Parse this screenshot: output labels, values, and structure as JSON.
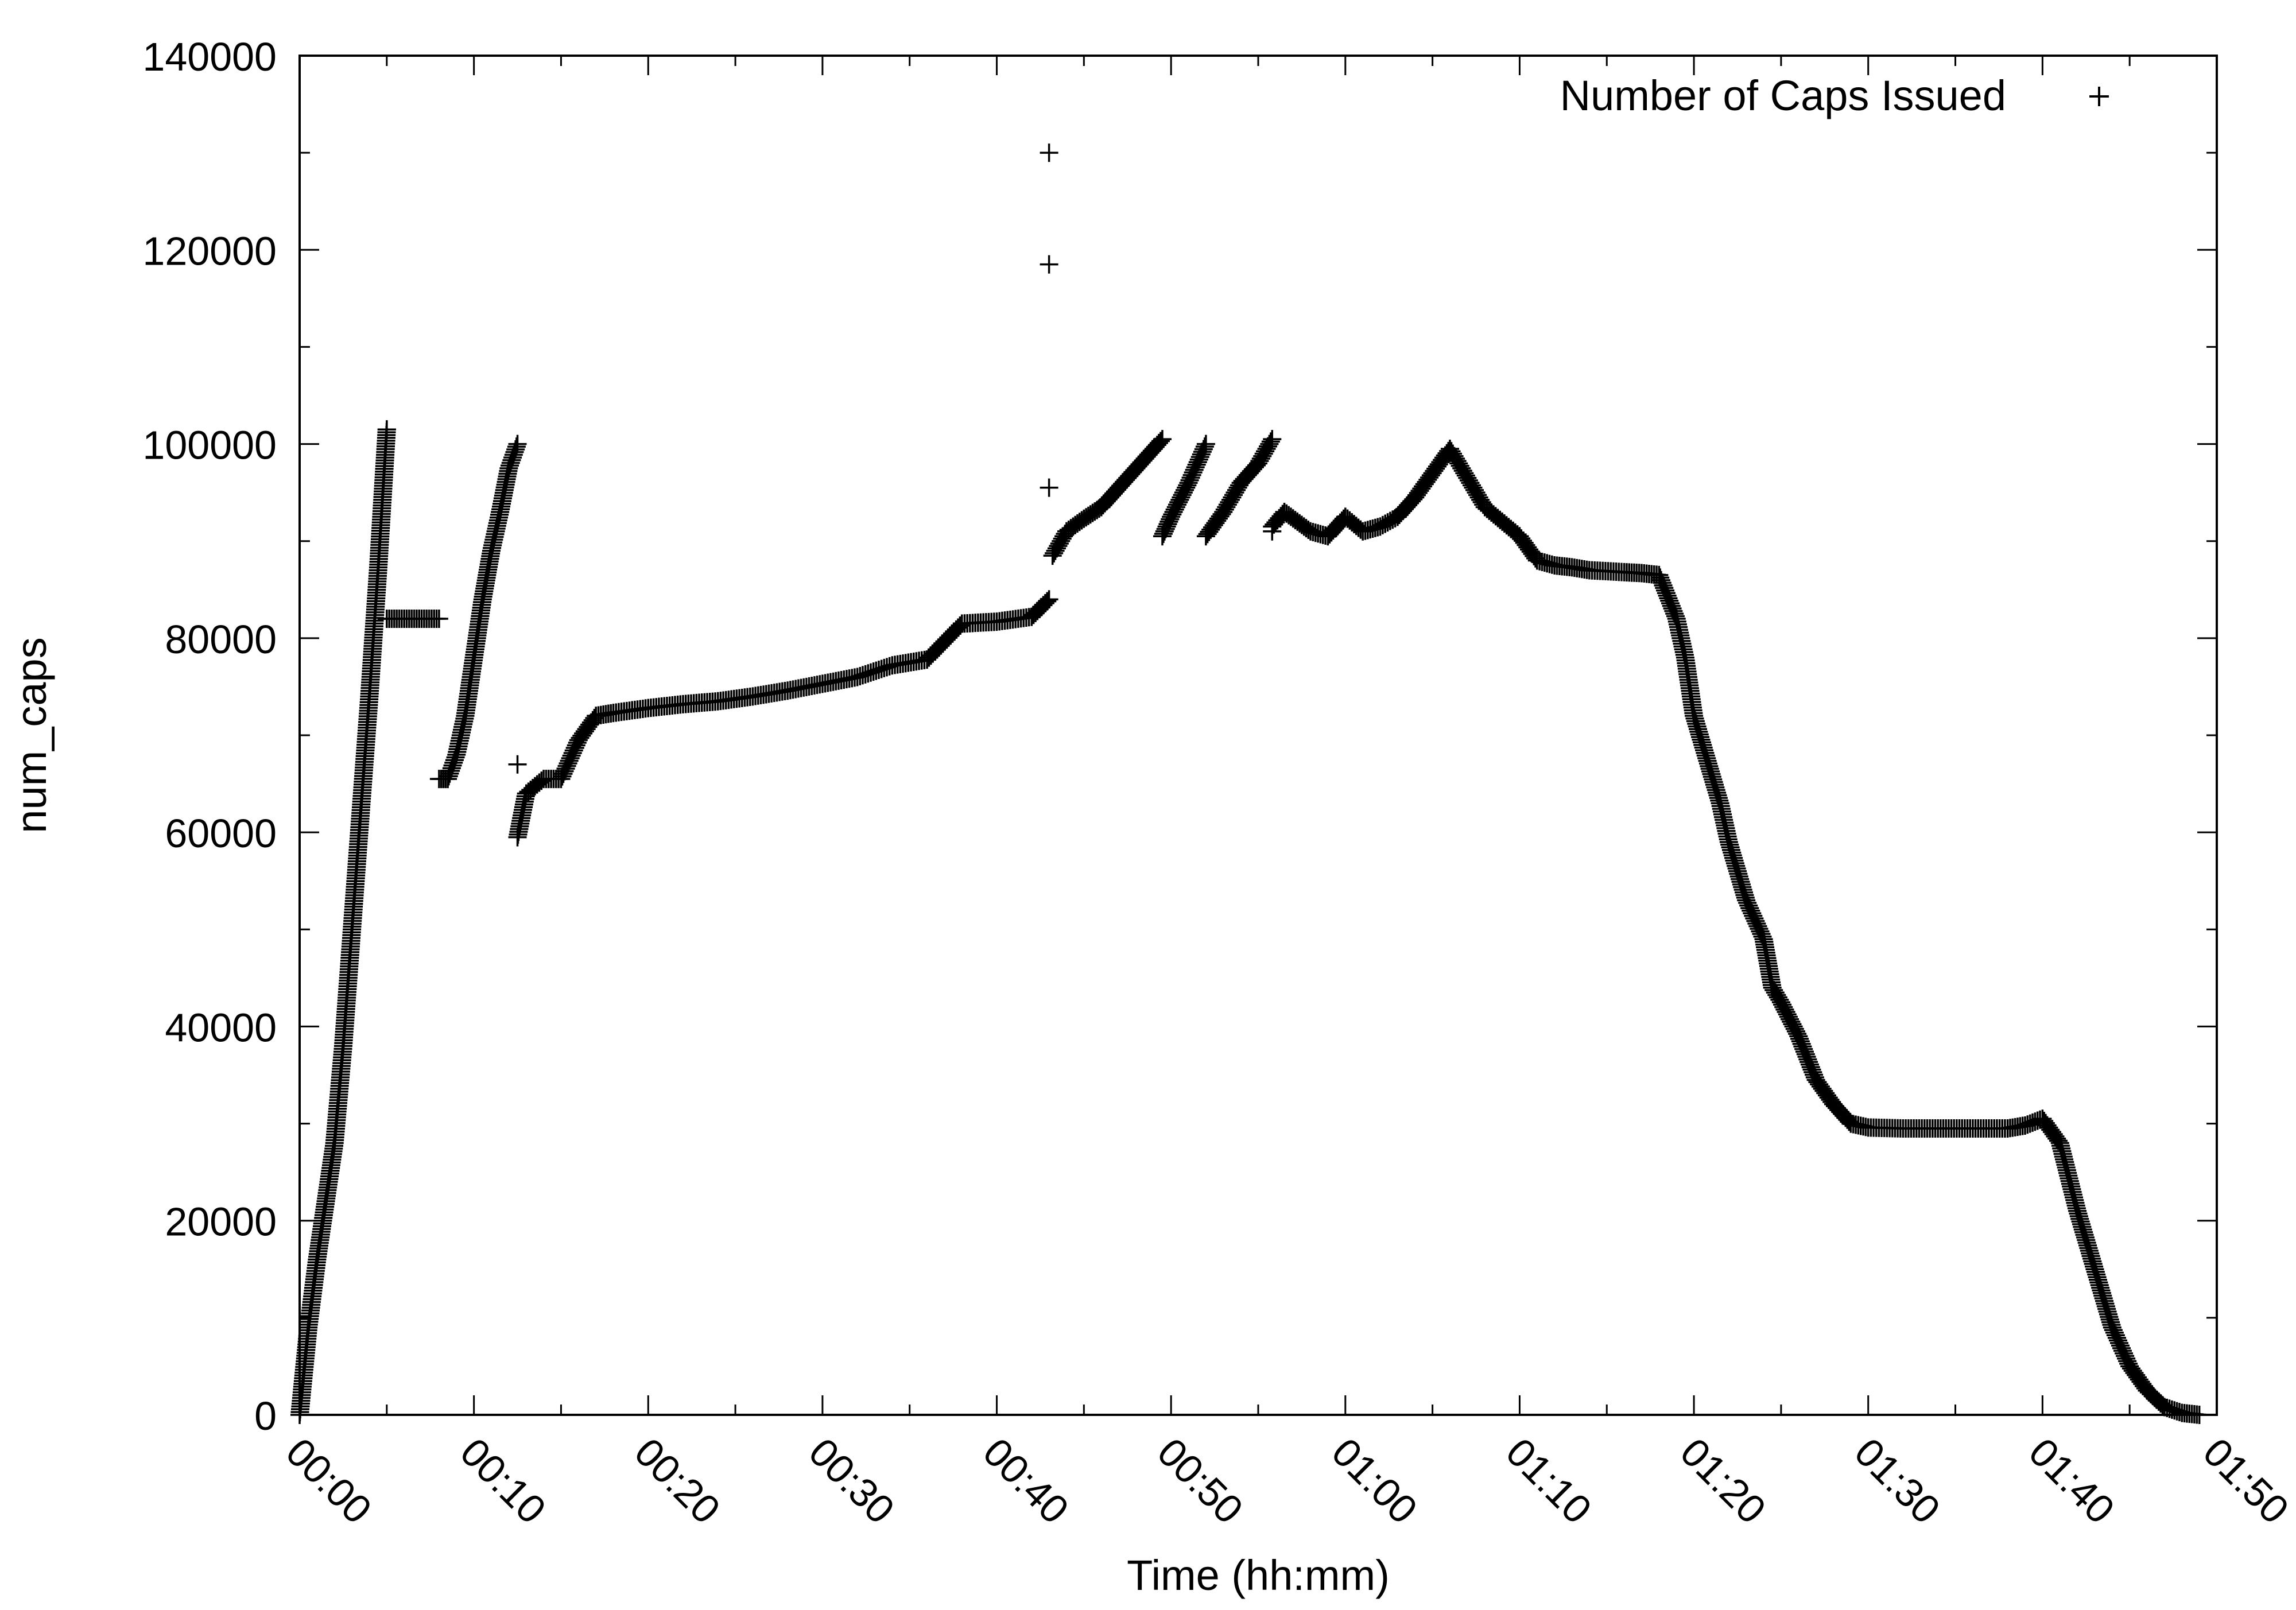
{
  "chart_data": {
    "type": "scatter",
    "title": "",
    "xlabel": "Time (hh:mm)",
    "ylabel": "num_caps",
    "x_unit": "minutes",
    "xlim": [
      0,
      110
    ],
    "ylim": [
      0,
      140000
    ],
    "x_ticks": [
      {
        "value": 0,
        "label": "00:00"
      },
      {
        "value": 10,
        "label": "00:10"
      },
      {
        "value": 20,
        "label": "00:20"
      },
      {
        "value": 30,
        "label": "00:30"
      },
      {
        "value": 40,
        "label": "00:40"
      },
      {
        "value": 50,
        "label": "00:50"
      },
      {
        "value": 60,
        "label": "01:00"
      },
      {
        "value": 70,
        "label": "01:10"
      },
      {
        "value": 80,
        "label": "01:20"
      },
      {
        "value": 90,
        "label": "01:30"
      },
      {
        "value": 100,
        "label": "01:40"
      },
      {
        "value": 110,
        "label": "01:50"
      }
    ],
    "y_ticks": [
      {
        "value": 0,
        "label": "0"
      },
      {
        "value": 20000,
        "label": "20000"
      },
      {
        "value": 40000,
        "label": "40000"
      },
      {
        "value": 60000,
        "label": "60000"
      },
      {
        "value": 80000,
        "label": "80000"
      },
      {
        "value": 100000,
        "label": "100000"
      },
      {
        "value": 120000,
        "label": "120000"
      },
      {
        "value": 140000,
        "label": "140000"
      }
    ],
    "grid": false,
    "legend_position": "top-right",
    "series": [
      {
        "name": "Number of Caps Issued",
        "marker": "plus",
        "color": "#000000",
        "segments": [
          [
            [
              0.0,
              0
            ],
            [
              0.5,
              9000
            ],
            [
              1.0,
              16000
            ],
            [
              1.5,
              22000
            ],
            [
              2.0,
              28000
            ],
            [
              2.5,
              38000
            ],
            [
              3.0,
              50000
            ],
            [
              3.5,
              62000
            ],
            [
              4.0,
              74000
            ],
            [
              4.5,
              87000
            ],
            [
              5.0,
              101500
            ]
          ],
          [
            [
              5.0,
              82000
            ],
            [
              6.0,
              82000
            ],
            [
              7.0,
              82000
            ],
            [
              8.0,
              82000
            ]
          ],
          [
            [
              8.0,
              65500
            ],
            [
              8.5,
              65500
            ],
            [
              9.0,
              68000
            ],
            [
              9.5,
              72000
            ],
            [
              10.0,
              78000
            ],
            [
              10.5,
              84000
            ],
            [
              11.0,
              89000
            ],
            [
              11.5,
              93000
            ],
            [
              12.0,
              97500
            ],
            [
              12.5,
              100000
            ]
          ],
          [
            [
              12.5,
              59500
            ],
            [
              13.0,
              64000
            ],
            [
              14.0,
              65500
            ],
            [
              15.0,
              65500
            ],
            [
              16.0,
              69500
            ],
            [
              17.0,
              72000
            ],
            [
              18.0,
              72300
            ],
            [
              20.0,
              72800
            ],
            [
              22.0,
              73200
            ],
            [
              24.0,
              73500
            ],
            [
              26.0,
              74000
            ],
            [
              28.0,
              74600
            ],
            [
              30.0,
              75300
            ],
            [
              32.0,
              76000
            ],
            [
              34.0,
              77200
            ],
            [
              36.0,
              77800
            ],
            [
              38.0,
              81500
            ],
            [
              40.0,
              81700
            ],
            [
              42.0,
              82200
            ],
            [
              43.0,
              84000
            ]
          ],
          [
            [
              43.2,
              88500
            ],
            [
              44.0,
              91000
            ],
            [
              45.0,
              92300
            ],
            [
              46.0,
              93500
            ],
            [
              47.0,
              95500
            ],
            [
              48.0,
              97500
            ],
            [
              49.0,
              99500
            ],
            [
              49.5,
              100500
            ]
          ],
          [
            [
              49.5,
              90500
            ],
            [
              50.0,
              92500
            ],
            [
              51.0,
              96000
            ],
            [
              52.0,
              100000
            ]
          ],
          [
            [
              52.0,
              90500
            ],
            [
              53.0,
              93000
            ],
            [
              54.0,
              96000
            ],
            [
              55.0,
              98000
            ],
            [
              55.8,
              100500
            ]
          ],
          [
            [
              55.8,
              91500
            ],
            [
              56.5,
              93000
            ],
            [
              58.0,
              91000
            ],
            [
              59.0,
              90500
            ],
            [
              60.0,
              92500
            ],
            [
              61.0,
              91000
            ],
            [
              62.0,
              91500
            ],
            [
              63.0,
              92500
            ],
            [
              64.0,
              94500
            ],
            [
              65.0,
              97000
            ],
            [
              66.0,
              99500
            ],
            [
              67.0,
              96500
            ],
            [
              68.0,
              93500
            ],
            [
              69.0,
              92000
            ],
            [
              70.0,
              90500
            ],
            [
              71.0,
              88000
            ],
            [
              72.0,
              87500
            ],
            [
              73.0,
              87300
            ],
            [
              74.0,
              87000
            ],
            [
              76.0,
              86800
            ],
            [
              77.0,
              86700
            ],
            [
              78.0,
              86500
            ],
            [
              79.0,
              82000
            ],
            [
              79.5,
              78000
            ],
            [
              80.0,
              72000
            ],
            [
              80.5,
              69000
            ],
            [
              81.0,
              66000
            ],
            [
              81.5,
              63000
            ],
            [
              82.0,
              59000
            ],
            [
              83.0,
              53000
            ],
            [
              84.0,
              49000
            ],
            [
              84.5,
              44000
            ],
            [
              85.0,
              42500
            ],
            [
              86.0,
              39000
            ],
            [
              87.0,
              34500
            ],
            [
              88.0,
              32000
            ],
            [
              89.0,
              30000
            ],
            [
              90.0,
              29600
            ],
            [
              92.0,
              29500
            ],
            [
              94.0,
              29500
            ],
            [
              96.0,
              29500
            ],
            [
              98.0,
              29500
            ],
            [
              99.0,
              29800
            ],
            [
              100.0,
              30500
            ],
            [
              101.0,
              28000
            ],
            [
              102.0,
              21000
            ],
            [
              103.0,
              15000
            ],
            [
              104.0,
              9000
            ],
            [
              105.0,
              5000
            ],
            [
              106.0,
              2500
            ],
            [
              107.0,
              800
            ],
            [
              108.0,
              200
            ],
            [
              109.0,
              0
            ]
          ]
        ],
        "outliers": [
          [
            43.0,
            130000
          ],
          [
            43.0,
            118500
          ],
          [
            43.0,
            95500
          ],
          [
            12.5,
            67000
          ],
          [
            5.0,
            101500
          ],
          [
            55.8,
            91000
          ]
        ]
      }
    ]
  }
}
